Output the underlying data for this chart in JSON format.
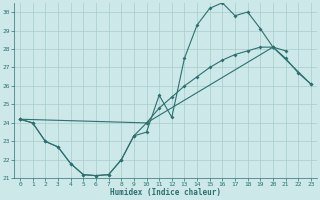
{
  "xlabel": "Humidex (Indice chaleur)",
  "xlim": [
    -0.5,
    23.5
  ],
  "ylim": [
    21,
    30.5
  ],
  "yticks": [
    21,
    22,
    23,
    24,
    25,
    26,
    27,
    28,
    29,
    30
  ],
  "xticks": [
    0,
    1,
    2,
    3,
    4,
    5,
    6,
    7,
    8,
    9,
    10,
    11,
    12,
    13,
    14,
    15,
    16,
    17,
    18,
    19,
    20,
    21,
    22,
    23
  ],
  "bg_color": "#cde8e8",
  "line_color": "#2d7070",
  "grid_color": "#a8cccc",
  "line1_x": [
    0,
    1,
    2,
    3,
    4,
    5,
    6,
    7,
    8,
    9,
    10,
    11,
    12,
    13,
    14,
    15,
    16,
    17,
    18,
    19,
    20,
    21
  ],
  "line1_y": [
    24.2,
    24.0,
    23.0,
    22.7,
    21.8,
    21.2,
    21.15,
    21.2,
    22.0,
    23.3,
    23.5,
    25.5,
    24.3,
    27.5,
    29.3,
    30.2,
    30.5,
    29.8,
    30.0,
    29.1,
    28.1,
    27.9
  ],
  "line2_x": [
    0,
    10,
    20,
    23
  ],
  "line2_y": [
    24.2,
    24.0,
    28.1,
    26.1
  ],
  "line3_x": [
    0,
    1,
    2,
    3,
    4,
    5,
    6,
    7,
    8,
    9,
    10,
    11,
    12,
    13,
    14,
    15,
    16,
    17,
    18,
    19,
    20,
    21,
    22,
    23
  ],
  "line3_y": [
    24.2,
    24.0,
    23.0,
    22.7,
    21.8,
    21.2,
    21.15,
    21.2,
    22.0,
    23.3,
    24.0,
    24.8,
    25.4,
    26.0,
    26.5,
    27.0,
    27.4,
    27.7,
    27.9,
    28.1,
    28.1,
    27.5,
    26.7,
    26.1
  ]
}
